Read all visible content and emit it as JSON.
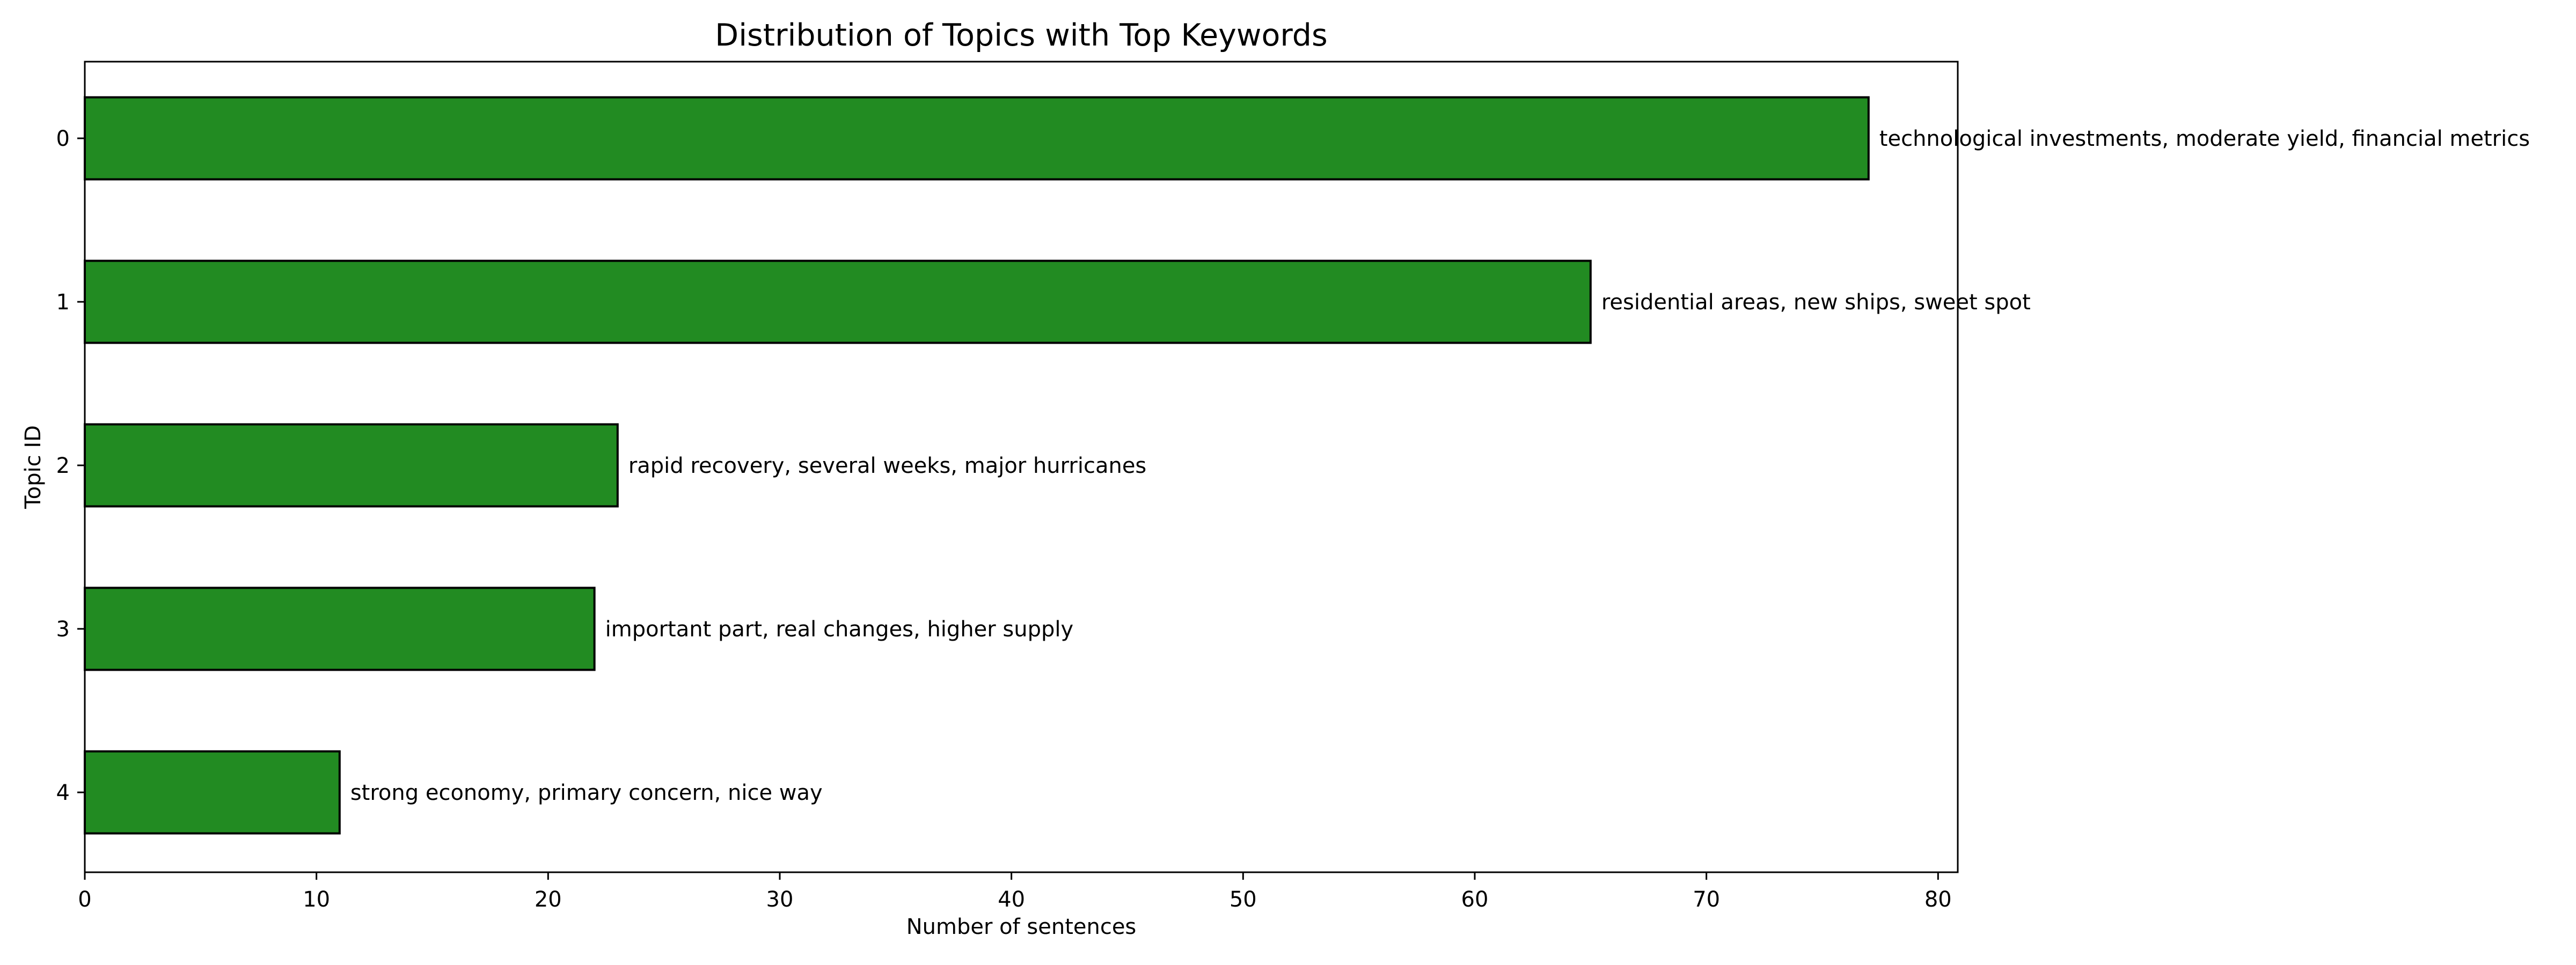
{
  "chart_data": {
    "type": "bar",
    "orientation": "horizontal",
    "title": "Distribution of Topics with Top Keywords",
    "xlabel": "Number of sentences",
    "ylabel": "Topic ID",
    "categories": [
      "0",
      "1",
      "2",
      "3",
      "4"
    ],
    "values": [
      77,
      65,
      23,
      22,
      11
    ],
    "data_labels": [
      "technological investments, moderate yield, financial metrics",
      "residential areas, new ships, sweet spot",
      "rapid recovery, several weeks, major hurricanes",
      "important part, real changes, higher supply",
      "strong economy, primary concern, nice way"
    ],
    "xlim": [
      0,
      80.85
    ],
    "xticks": [
      0,
      10,
      20,
      30,
      40,
      50,
      60,
      70,
      80
    ],
    "grid": false,
    "legend": "none",
    "colors": {
      "bar_fill": "#228b22",
      "bar_edge": "#000000",
      "axis": "#000000",
      "text": "#000000"
    }
  }
}
